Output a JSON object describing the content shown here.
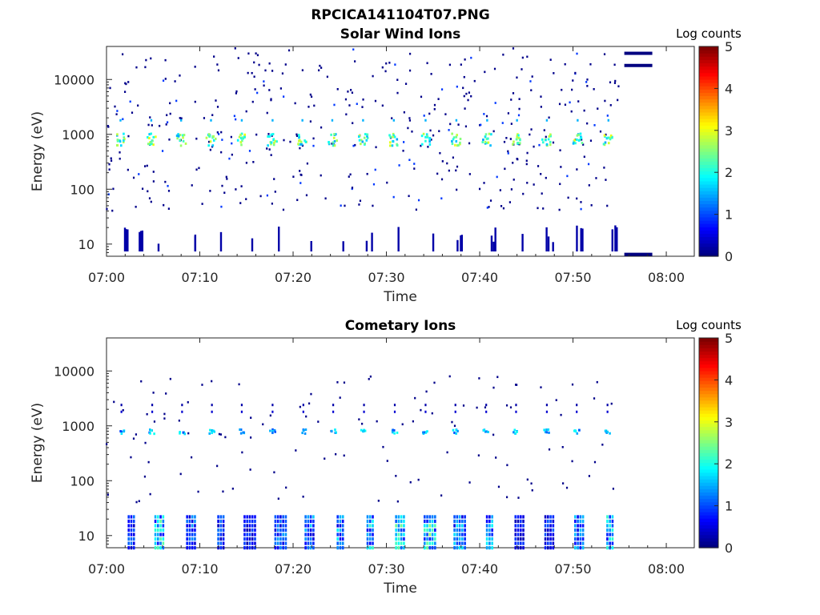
{
  "figure": {
    "title": "RPCICA141104T07.PNG"
  },
  "chart_data": [
    {
      "type": "heatmap",
      "title": "Solar Wind Ions",
      "xlabel": "Time",
      "ylabel": "Energy (eV)",
      "x_ticks": [
        "07:00",
        "07:10",
        "07:20",
        "07:30",
        "07:40",
        "07:50",
        "08:00"
      ],
      "x_range_minutes": [
        0,
        63
      ],
      "y_scale": "log",
      "y_ticks": [
        "10",
        "100",
        "1000",
        "10000"
      ],
      "y_range_eV": [
        6,
        40000
      ],
      "colorbar": {
        "label": "Log counts",
        "ticks": [
          "0",
          "1",
          "2",
          "3",
          "4",
          "5"
        ],
        "range": [
          0,
          5
        ],
        "colormap": "jet"
      },
      "grid": false,
      "solar_wind_peaks": {
        "energy_eV": 800,
        "log_counts": 2.8,
        "times_minutes": [
          1.5,
          4.8,
          8,
          11.2,
          14.5,
          17.8,
          21,
          24.2,
          27.5,
          30.8,
          34.2,
          37.5,
          40.8,
          44,
          47.2,
          50.5,
          53.8
        ]
      },
      "low_energy_bursts": {
        "log_counts": 0.2,
        "energy_range_eV": [
          6,
          20
        ],
        "times_minutes": [
          2.2,
          3.8,
          5.5,
          9.3,
          12.6,
          15.6,
          18.8,
          22.2,
          25.3,
          28.2,
          31.5,
          34.8,
          38,
          41.3,
          44.3,
          47.5,
          50.8,
          54.5
        ]
      },
      "constant_lines": [
        {
          "t_start": 55.5,
          "t_end": 58.5,
          "energy_eV": 30000,
          "log_counts": 0
        },
        {
          "t_start": 55.5,
          "t_end": 58.5,
          "energy_eV": 18000,
          "log_counts": 0
        },
        {
          "t_start": 55.5,
          "t_end": 58.5,
          "energy_eV": 6.5,
          "log_counts": 0
        }
      ]
    },
    {
      "type": "heatmap",
      "title": "Cometary Ions",
      "xlabel": "Time",
      "ylabel": "Energy (eV)",
      "x_ticks": [
        "07:00",
        "07:10",
        "07:20",
        "07:30",
        "07:40",
        "07:50",
        "08:00"
      ],
      "x_range_minutes": [
        0,
        63
      ],
      "y_scale": "log",
      "y_ticks": [
        "10",
        "100",
        "1000",
        "10000"
      ],
      "y_range_eV": [
        6,
        40000
      ],
      "colorbar": {
        "label": "Log counts",
        "ticks": [
          "0",
          "1",
          "2",
          "3",
          "4",
          "5"
        ],
        "range": [
          0,
          5
        ],
        "colormap": "jet"
      },
      "grid": false,
      "peak_band": {
        "energy_eV": 780,
        "log_counts": 1.8,
        "times_minutes": [
          1.6,
          4.9,
          8.1,
          11.3,
          14.5,
          17.8,
          21.1,
          24.3,
          27.6,
          30.9,
          34.2,
          37.4,
          40.7,
          43.9,
          47.2,
          50.4,
          53.7
        ]
      },
      "low_energy_bursts": {
        "energy_range_eV": [
          6,
          22
        ],
        "items": [
          {
            "t": 2.8,
            "log_counts": 1.0
          },
          {
            "t": 5.8,
            "log_counts": 2.0
          },
          {
            "t": 9.2,
            "log_counts": 1.2
          },
          {
            "t": 12.4,
            "log_counts": 1.0
          },
          {
            "t": 15.5,
            "log_counts": 0.8
          },
          {
            "t": 18.8,
            "log_counts": 1.2
          },
          {
            "t": 21.9,
            "log_counts": 1.4
          },
          {
            "t": 25.2,
            "log_counts": 1.6
          },
          {
            "t": 28.4,
            "log_counts": 1.8
          },
          {
            "t": 31.6,
            "log_counts": 2.0
          },
          {
            "t": 34.8,
            "log_counts": 2.2
          },
          {
            "t": 38.0,
            "log_counts": 1.5
          },
          {
            "t": 41.2,
            "log_counts": 1.6
          },
          {
            "t": 44.4,
            "log_counts": 0.8
          },
          {
            "t": 47.6,
            "log_counts": 0.9
          },
          {
            "t": 50.8,
            "log_counts": 1.4
          },
          {
            "t": 54.1,
            "log_counts": 1.8
          }
        ]
      }
    }
  ]
}
